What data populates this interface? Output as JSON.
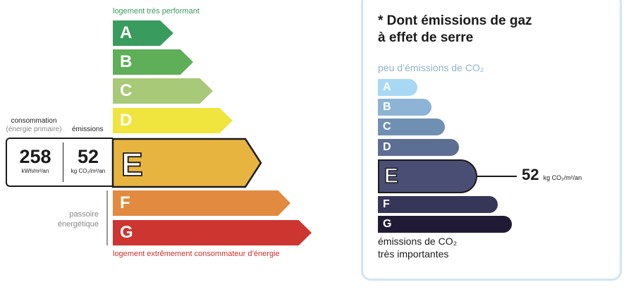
{
  "dpe": {
    "top_label": "logement très performant",
    "bottom_label": "logement extrêmement consommateur d’énergie",
    "classes": [
      "A",
      "B",
      "C",
      "D",
      "E",
      "F",
      "G"
    ],
    "current_class": "E",
    "consumption_label": "consommation",
    "consumption_sublabel": "(énergie primaire)",
    "emissions_label": "émissions",
    "consumption_value": "258",
    "consumption_unit": "kWh/m²/an",
    "emissions_value": "52",
    "emissions_unit": "kg CO₂/m²/an",
    "passoire_line1": "passoire",
    "passoire_line2": "énergétique",
    "colors": {
      "A": "#3a9b5e",
      "B": "#5fae58",
      "C": "#a8c978",
      "D": "#f0e43f",
      "E": "#e8b440",
      "F": "#e28a3f",
      "G": "#cc3530"
    }
  },
  "ges": {
    "title_line1": "* Dont émissions de gaz",
    "title_line2": "à effet de serre",
    "top_label": "peu d’émissions de CO₂",
    "classes": [
      "A",
      "B",
      "C",
      "D",
      "E",
      "F",
      "G"
    ],
    "current_class": "E",
    "value": "52",
    "unit": "kg CO₂/m²/an",
    "bottom_line1": "émissions de CO₂",
    "bottom_line2": "très importantes"
  }
}
